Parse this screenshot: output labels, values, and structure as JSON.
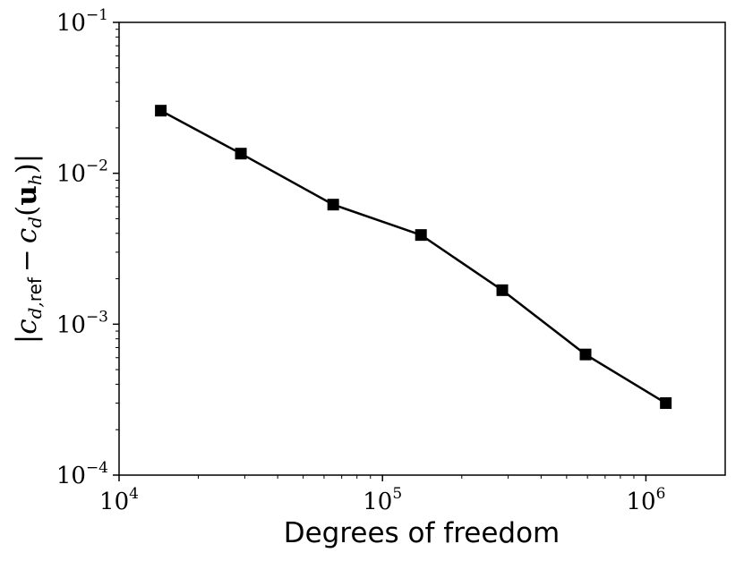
{
  "chart_data": {
    "type": "line",
    "xlabel": "Degrees of freedom",
    "ylabel": "|c_{d,ref} − c_d(u_h)|",
    "ylabel_parts": {
      "bar_left": "|",
      "c1": "c",
      "sub1": "d,",
      "sub1_ref": "ref",
      "minus": "−",
      "c2": "c",
      "sub2": "d",
      "open": "(",
      "u": "u",
      "u_sub": "h",
      "close": ")",
      "bar_right": "|"
    },
    "x_scale": "log",
    "y_scale": "log",
    "xlim": [
      10000,
      2000000
    ],
    "ylim": [
      0.0001,
      0.1
    ],
    "x_ticks": [
      {
        "base": "10",
        "exp": "4",
        "value": 10000
      },
      {
        "base": "10",
        "exp": "5",
        "value": 100000
      },
      {
        "base": "10",
        "exp": "6",
        "value": 1000000
      }
    ],
    "y_ticks": [
      {
        "base": "10",
        "exp": "−4",
        "value": 0.0001
      },
      {
        "base": "10",
        "exp": "−3",
        "value": 0.001
      },
      {
        "base": "10",
        "exp": "−2",
        "value": 0.01
      },
      {
        "base": "10",
        "exp": "−1",
        "value": 0.1
      }
    ],
    "grid": false,
    "series": [
      {
        "marker": "square",
        "color": "#000000",
        "x": [
          14400,
          29000,
          65000,
          140000,
          285000,
          590000,
          1190000
        ],
        "y": [
          0.026,
          0.0135,
          0.0062,
          0.0039,
          0.00168,
          0.00063,
          0.0003
        ]
      }
    ]
  }
}
